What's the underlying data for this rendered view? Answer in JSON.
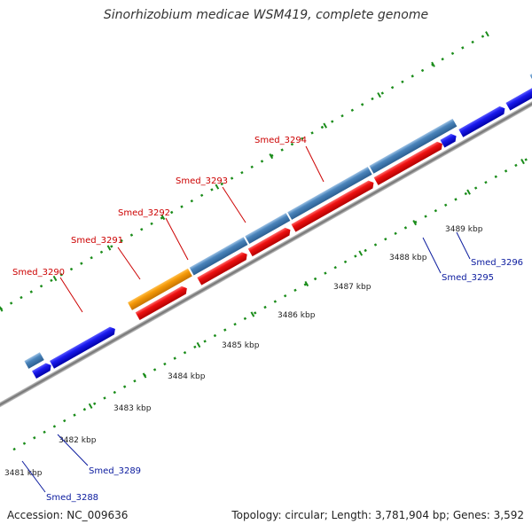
{
  "title": "Sinorhizobium medicae WSM419, complete genome",
  "footer": {
    "accession": "Accession: NC_009636",
    "stats": "Topology: circular; Length: 3,781,904 bp; Genes: 3,592"
  },
  "colors": {
    "backbone": "#8c8c8c",
    "tick": "#1a8c1a",
    "red_feature": "#ee1111",
    "blue_feature": "#1a1aee",
    "steel_feature": "#4a84bb",
    "orange_feature": "#f59a0a",
    "red_label": "#cc0000",
    "blue_label": "#0a1a9e"
  },
  "scale_labels": [
    "3481 kbp",
    "3482 kbp",
    "3483 kbp",
    "3484 kbp",
    "3485 kbp",
    "3486 kbp",
    "3487 kbp",
    "3488 kbp",
    "3489 kbp"
  ],
  "gene_labels": [
    {
      "name": "Smed_3288",
      "color": "blue"
    },
    {
      "name": "Smed_3289",
      "color": "blue"
    },
    {
      "name": "Smed_3290",
      "color": "red"
    },
    {
      "name": "Smed_3291",
      "color": "red"
    },
    {
      "name": "Smed_3292",
      "color": "red"
    },
    {
      "name": "Smed_3293",
      "color": "red"
    },
    {
      "name": "Smed_3294",
      "color": "red"
    },
    {
      "name": "Smed_3295",
      "color": "blue"
    },
    {
      "name": "Smed_3296",
      "color": "blue"
    }
  ]
}
